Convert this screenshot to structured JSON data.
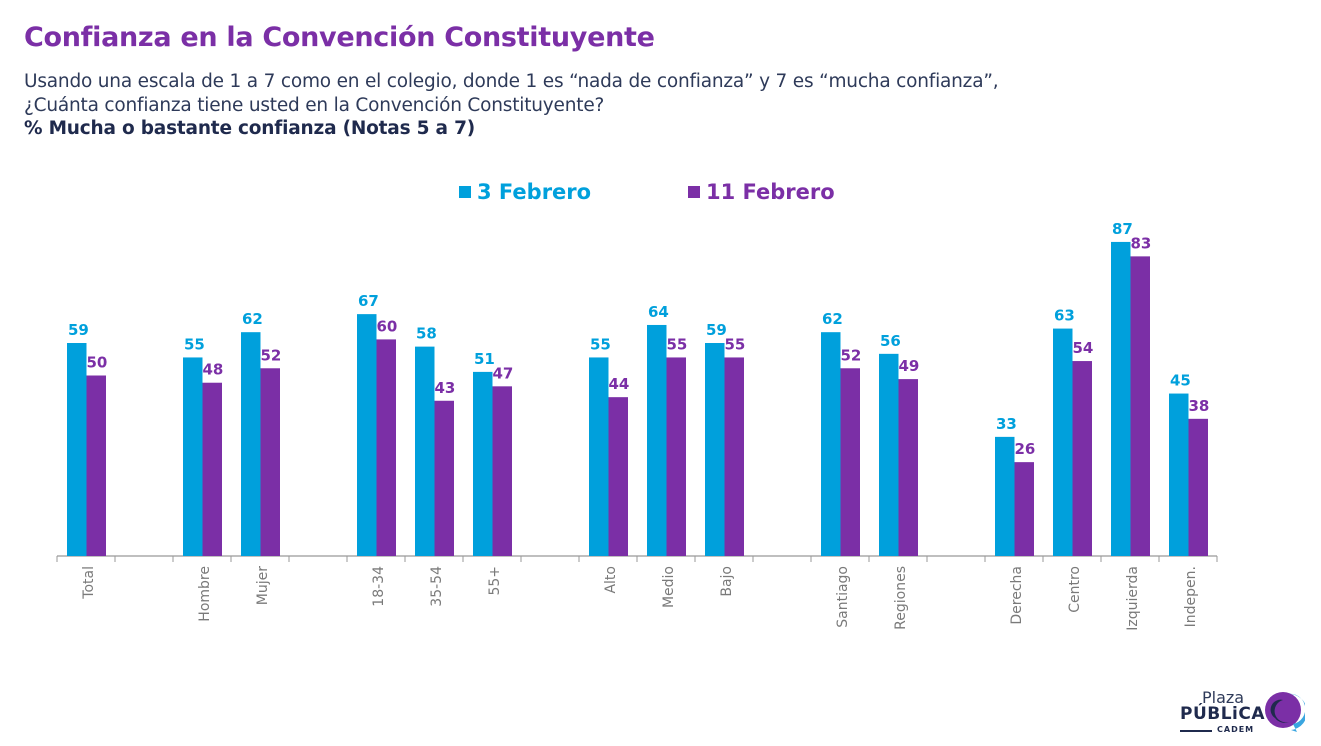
{
  "header": {
    "title": "Confianza en la Convención Constituyente",
    "question_line1": "Usando una escala de 1 a 7 como en el colegio, donde 1 es “nada de confianza” y 7 es “mucha confianza”,",
    "question_line2": "¿Cuánta confianza tiene usted en la Convención Constituyente?",
    "measure": "% Mucha o bastante confianza (Notas 5 a 7)"
  },
  "colors": {
    "series1": "#00a0dc",
    "series2": "#7b2fa6",
    "axis": "#999999",
    "tick_label": "#7a7a7a"
  },
  "chart_data": {
    "type": "bar",
    "title": "Confianza en la Convención Constituyente",
    "xlabel": "",
    "ylabel": "% Mucha o bastante confianza",
    "ylim": [
      0,
      100
    ],
    "grid": false,
    "legend_position": "top-center",
    "categories": [
      "Total",
      "",
      "Hombre",
      "Mujer",
      "",
      "18-34",
      "35-54",
      "55+",
      "",
      "Alto",
      "Medio",
      "Bajo",
      "",
      "Santiago",
      "Regiones",
      "",
      "Derecha",
      "Centro",
      "Izquierda",
      "Indepen."
    ],
    "series": [
      {
        "name": "3 Febrero",
        "values": [
          59,
          null,
          55,
          62,
          null,
          67,
          58,
          51,
          null,
          55,
          64,
          59,
          null,
          62,
          56,
          null,
          33,
          63,
          87,
          45
        ]
      },
      {
        "name": "11 Febrero",
        "values": [
          50,
          null,
          48,
          52,
          null,
          60,
          43,
          47,
          null,
          44,
          55,
          55,
          null,
          52,
          49,
          null,
          26,
          54,
          83,
          38
        ]
      }
    ]
  },
  "logo": {
    "line1": "Plaza",
    "line2": "PÚBLiCA",
    "line3": "CADEM"
  }
}
